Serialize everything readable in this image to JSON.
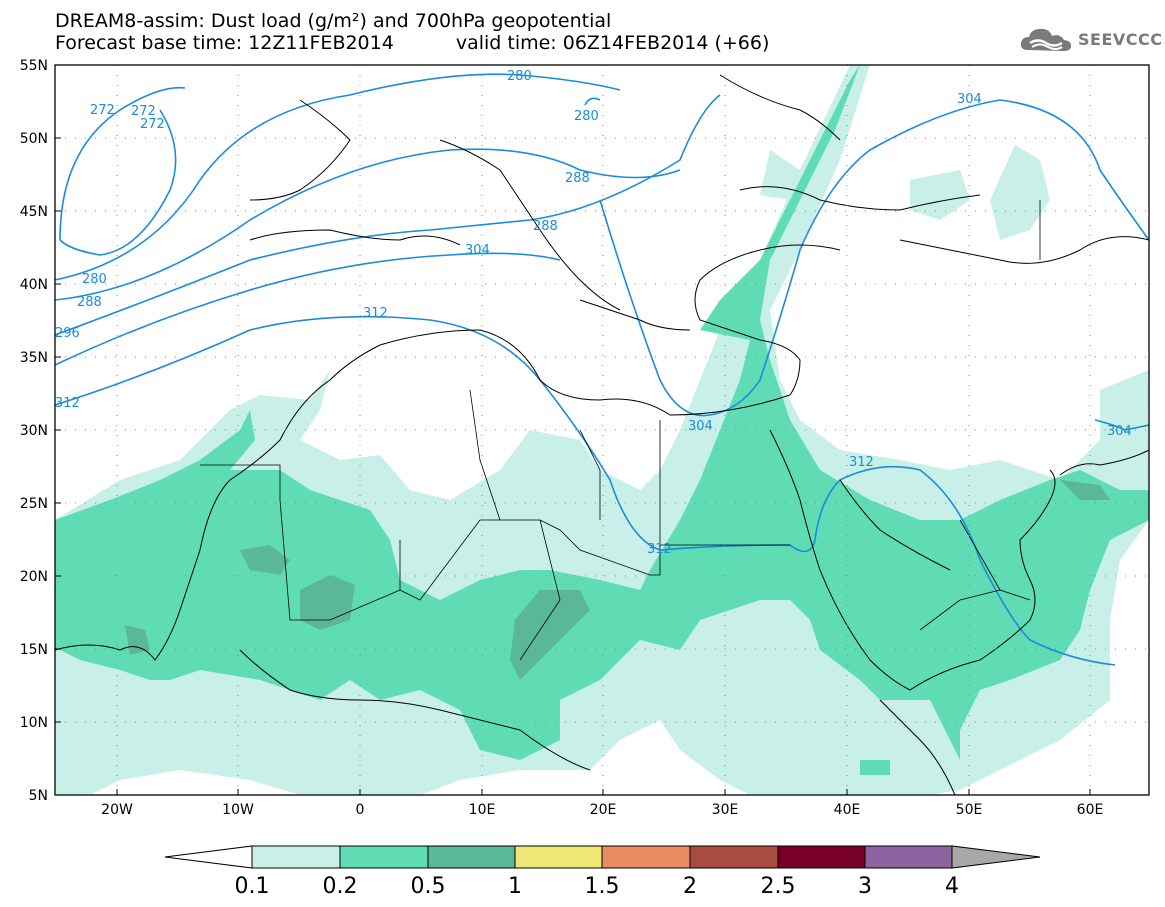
{
  "title": {
    "line1": "DREAM8-assim: Dust load (g/m²) and 700hPa geopotential",
    "line2_base": "Forecast base time: 12Z11FEB2014",
    "line2_valid": "valid time: 06Z14FEB2014 (+66)"
  },
  "logo": {
    "text": "SEEVCCC",
    "icon": "cloud-logo-icon",
    "color": "#7a7a7a"
  },
  "map": {
    "lat_labels": [
      "55N",
      "50N",
      "45N",
      "40N",
      "35N",
      "30N",
      "25N",
      "20N",
      "15N",
      "10N",
      "5N"
    ],
    "lon_labels": [
      "20W",
      "10W",
      "0",
      "10E",
      "20E",
      "30E",
      "40E",
      "50E",
      "60E"
    ],
    "contour_labels": [
      "272",
      "272",
      "272",
      "280",
      "280",
      "280",
      "288",
      "288",
      "288",
      "296",
      "304",
      "304",
      "304",
      "304",
      "312",
      "312",
      "312",
      "312"
    ],
    "colors": {
      "dust1": "#c8f0e8",
      "dust2": "#5fdcb4",
      "dust3": "#5ab896",
      "contour": "#1a8cdc",
      "coast": "#000000"
    }
  },
  "colorbar": {
    "labels": [
      "0.1",
      "0.2",
      "0.5",
      "1",
      "1.5",
      "2",
      "2.5",
      "3",
      "4"
    ],
    "colors": [
      "#ffffff",
      "#c8f0e8",
      "#5fdcb4",
      "#5ab896",
      "#f0e678",
      "#e88c64",
      "#a84c40",
      "#780028",
      "#8c64a0",
      "#a8a8a8"
    ]
  }
}
